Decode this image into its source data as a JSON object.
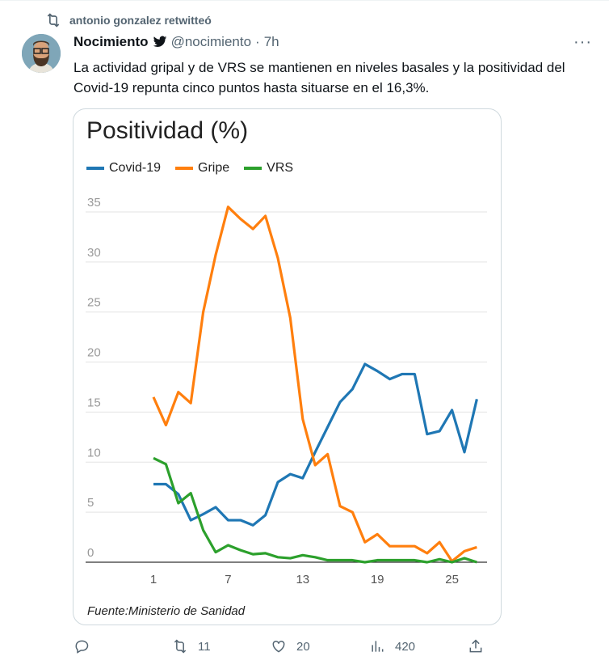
{
  "retweet": {
    "label": "antonio gonzalez retwitteó"
  },
  "tweet": {
    "name": "Nocimiento",
    "handle": "@nocimiento",
    "sep": "·",
    "time": "7h",
    "more": "···",
    "text": "La actividad gripal y de VRS se mantienen en niveles basales y la positividad del Covid-19 repunta cinco puntos hasta situarse en el 16,3%.",
    "stats": {
      "replies": "",
      "retweets": "11",
      "likes": "20",
      "views": "420"
    }
  },
  "chart_data": {
    "type": "line",
    "title": "Positividad (%)",
    "source": "Fuente:Ministerio de Sanidad",
    "x": [
      1,
      2,
      3,
      4,
      5,
      6,
      7,
      8,
      9,
      10,
      11,
      12,
      13,
      14,
      15,
      16,
      17,
      18,
      19,
      20,
      21,
      22,
      23,
      24,
      25,
      26,
      27
    ],
    "xticks": [
      1,
      7,
      13,
      19,
      25
    ],
    "yticks": [
      0,
      5,
      10,
      15,
      20,
      25,
      30,
      35
    ],
    "ylim": [
      0,
      35
    ],
    "legend": "top-left",
    "series": [
      {
        "name": "Covid-19",
        "color": "#1f77b4",
        "values": [
          7.8,
          7.8,
          6.8,
          4.2,
          4.8,
          5.5,
          4.2,
          4.2,
          3.7,
          4.7,
          8.0,
          8.8,
          8.4,
          11.0,
          13.5,
          16.0,
          17.3,
          19.8,
          19.1,
          18.3,
          18.8,
          18.8,
          12.8,
          13.1,
          15.2,
          11.0,
          16.3
        ]
      },
      {
        "name": "Gripe",
        "color": "#ff7f0e",
        "values": [
          16.5,
          13.7,
          17.0,
          15.9,
          25.0,
          30.7,
          35.5,
          34.3,
          33.3,
          34.6,
          30.4,
          24.4,
          14.3,
          9.7,
          10.8,
          5.6,
          5.0,
          2.0,
          2.8,
          1.6,
          1.6,
          1.6,
          0.9,
          2.0,
          0.1,
          1.1,
          1.5
        ]
      },
      {
        "name": "VRS",
        "color": "#2ca02c",
        "values": [
          10.4,
          9.8,
          5.9,
          6.9,
          3.2,
          1.0,
          1.7,
          1.2,
          0.8,
          0.9,
          0.5,
          0.4,
          0.7,
          0.5,
          0.2,
          0.2,
          0.2,
          0.0,
          0.2,
          0.2,
          0.2,
          0.2,
          0.0,
          0.3,
          0.0,
          0.4,
          0.0
        ]
      }
    ]
  }
}
